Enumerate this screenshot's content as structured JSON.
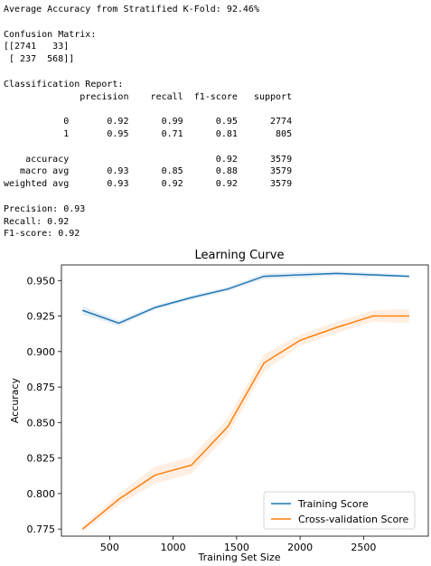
{
  "console": {
    "lines": [
      "Average Accuracy from Stratified K-Fold: 92.46%",
      "",
      "Confusion Matrix:",
      "[[2741   33]",
      " [ 237  568]]",
      "",
      "Classification Report:",
      "              precision    recall  f1-score   support",
      "",
      "           0       0.92      0.99      0.95      2774",
      "           1       0.95      0.71      0.81       805",
      "",
      "    accuracy                           0.92      3579",
      "   macro avg       0.93      0.85      0.88      3579",
      "weighted avg       0.93      0.92      0.92      3579",
      "",
      "Precision: 0.93",
      "Recall: 0.92",
      "F1-score: 0.92"
    ]
  },
  "chart_data": {
    "type": "line",
    "title": "Learning Curve",
    "xlabel": "Training Set Size",
    "ylabel": "Accuracy",
    "xlim": [
      120,
      3010
    ],
    "ylim": [
      0.77,
      0.961
    ],
    "xticks": [
      500,
      1000,
      1500,
      2000,
      2500
    ],
    "xtick_labels": [
      "500",
      "1000",
      "1500",
      "2000",
      "2500"
    ],
    "yticks": [
      0.775,
      0.8,
      0.825,
      0.85,
      0.875,
      0.9,
      0.925,
      0.95
    ],
    "ytick_labels": [
      "0.775",
      "0.800",
      "0.825",
      "0.850",
      "0.875",
      "0.900",
      "0.925",
      "0.950"
    ],
    "grid": false,
    "legend_position": "lower-right",
    "x": [
      286,
      572,
      858,
      1144,
      1430,
      1716,
      2002,
      2288,
      2574,
      2860
    ],
    "series": [
      {
        "name": "Training Score",
        "color": "#1f77b4",
        "values": [
          0.929,
          0.92,
          0.931,
          0.938,
          0.944,
          0.953,
          0.954,
          0.955,
          0.954,
          0.953
        ],
        "std": [
          0.003,
          0.002,
          0.0015,
          0.0015,
          0.0015,
          0.002,
          0.002,
          0.0015,
          0.0015,
          0.001
        ]
      },
      {
        "name": "Cross-validation Score",
        "color": "#ff7f0e",
        "values": [
          0.775,
          0.796,
          0.813,
          0.82,
          0.847,
          0.892,
          0.908,
          0.917,
          0.925,
          0.925
        ],
        "std": [
          0.002,
          0.004,
          0.006,
          0.006,
          0.006,
          0.006,
          0.004,
          0.004,
          0.004,
          0.005
        ]
      }
    ]
  }
}
